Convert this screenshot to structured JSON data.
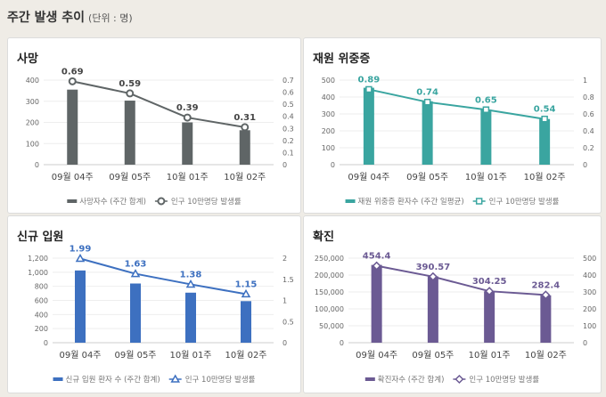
{
  "header": {
    "title": "주간 발생 추이",
    "unit": "(단위 : 명)"
  },
  "chart_data": [
    {
      "type": "bar+line",
      "title": "사망",
      "color": "#5f6566",
      "marker": "circle",
      "categories": [
        "09월 04주",
        "09월 05주",
        "10월 01주",
        "10월 02주"
      ],
      "series": [
        {
          "name": "사망자수 (주간 합계)",
          "type": "bar",
          "axis": "left",
          "values": [
            355,
            303,
            200,
            163
          ]
        },
        {
          "name": "인구 10만명당 발생률",
          "type": "line",
          "axis": "right",
          "values": [
            0.69,
            0.59,
            0.39,
            0.31
          ]
        }
      ],
      "yleft": {
        "range": [
          0,
          400
        ],
        "ticks": [
          "0",
          "100",
          "200",
          "300",
          "400"
        ]
      },
      "yright": {
        "range": [
          0,
          0.7
        ],
        "ticks": [
          "0",
          "0.1",
          "0.2",
          "0.3",
          "0.4",
          "0.5",
          "0.6",
          "0.7"
        ]
      },
      "grid": true,
      "legend": "bottom"
    },
    {
      "type": "bar+line",
      "title": "재원 위중증",
      "color": "#3aa5a0",
      "marker": "square",
      "categories": [
        "09월 04주",
        "09월 05주",
        "10월 01주",
        "10월 02주"
      ],
      "series": [
        {
          "name": "재원 위중증 환자수 (주간 일평균)",
          "type": "bar",
          "axis": "left",
          "values": [
            455,
            375,
            325,
            270
          ]
        },
        {
          "name": "인구 10만명당 발생률",
          "type": "line",
          "axis": "right",
          "values": [
            0.89,
            0.74,
            0.65,
            0.54
          ]
        }
      ],
      "yleft": {
        "range": [
          0,
          500
        ],
        "ticks": [
          "0",
          "100",
          "200",
          "300",
          "400",
          "500"
        ]
      },
      "yright": {
        "range": [
          0,
          1
        ],
        "ticks": [
          "0",
          "0.2",
          "0.4",
          "0.6",
          "0.8",
          "1"
        ]
      },
      "grid": true,
      "legend": "bottom"
    },
    {
      "type": "bar+line",
      "title": "신규 입원",
      "color": "#3d70c0",
      "marker": "triangle",
      "categories": [
        "09월 04주",
        "09월 05주",
        "10월 01주",
        "10월 02주"
      ],
      "series": [
        {
          "name": "신규 입원 환자 수 (주간 합계)",
          "type": "bar",
          "axis": "left",
          "values": [
            1025,
            840,
            710,
            590
          ]
        },
        {
          "name": "인구 10만명당 발생률",
          "type": "line",
          "axis": "right",
          "values": [
            1.99,
            1.63,
            1.38,
            1.15
          ]
        }
      ],
      "yleft": {
        "range": [
          0,
          1200
        ],
        "ticks": [
          "0",
          "200",
          "400",
          "600",
          "800",
          "1,000",
          "1,200"
        ]
      },
      "yright": {
        "range": [
          0,
          2
        ],
        "ticks": [
          "0",
          "0.5",
          "1",
          "1.5",
          "2"
        ]
      },
      "grid": true,
      "legend": "bottom"
    },
    {
      "type": "bar+line",
      "title": "확진",
      "color": "#6b5a93",
      "marker": "diamond",
      "categories": [
        "09월 04주",
        "09월 05주",
        "10월 01주",
        "10월 02주"
      ],
      "series": [
        {
          "name": "확진자수 (주간 합계)",
          "type": "bar",
          "axis": "left",
          "values": [
            230000,
            196000,
            152000,
            140000
          ]
        },
        {
          "name": "인구 10만명당 발생률",
          "type": "line",
          "axis": "right",
          "values": [
            454.4,
            390.57,
            304.25,
            282.4
          ]
        }
      ],
      "yleft": {
        "range": [
          0,
          250000
        ],
        "ticks": [
          "0",
          "50,000",
          "100,000",
          "150,000",
          "200,000",
          "250,000"
        ]
      },
      "yright": {
        "range": [
          0,
          500
        ],
        "ticks": [
          "0",
          "100",
          "200",
          "300",
          "400",
          "500"
        ]
      },
      "grid": true,
      "legend": "bottom"
    }
  ]
}
